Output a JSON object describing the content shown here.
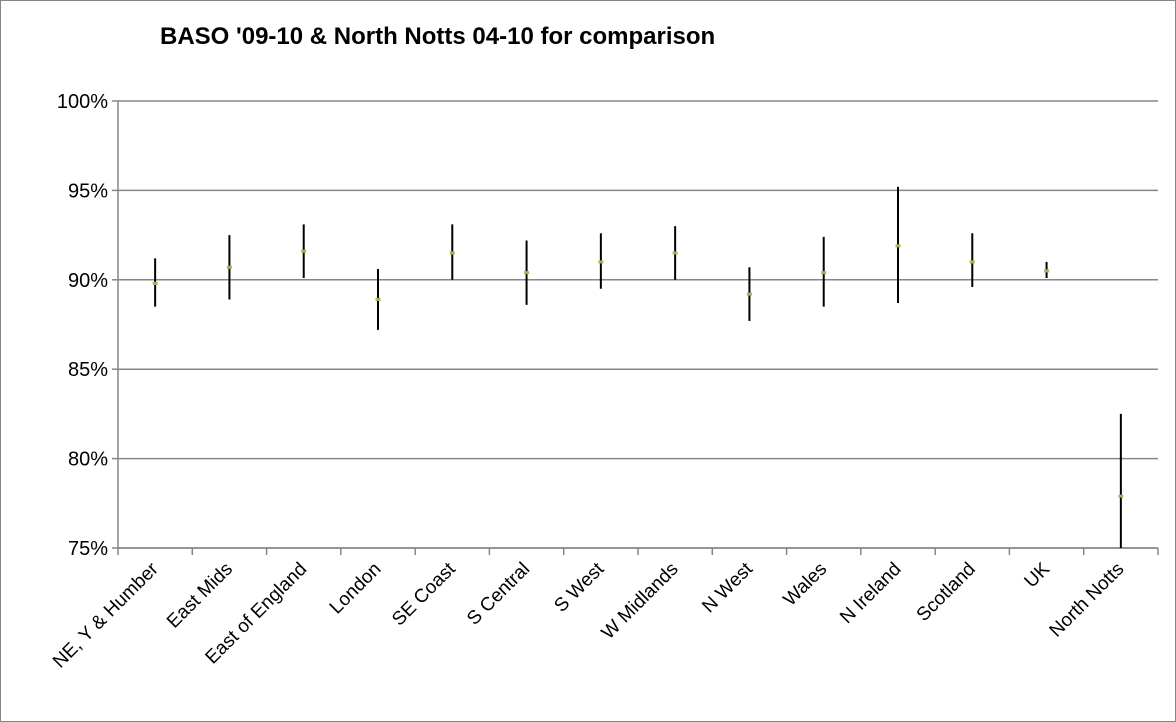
{
  "chart_data": {
    "type": "scatter",
    "title": "BASO '09-10 & North Notts  04-10 for comparison",
    "xlabel": "",
    "ylabel": "",
    "ylim": [
      0.75,
      1.0
    ],
    "y_ticks": [
      "75%",
      "80%",
      "85%",
      "90%",
      "95%",
      "100%"
    ],
    "y_tick_values": [
      0.75,
      0.8,
      0.85,
      0.9,
      0.95,
      1.0
    ],
    "grid": true,
    "legend": "none",
    "categories": [
      "NE, Y & Humber",
      "East Mids",
      "East of England",
      "London",
      "SE Coast",
      "S Central",
      "S West",
      "W Midlands",
      "N West",
      "Wales",
      "N Ireland",
      "Scotland",
      "UK",
      "North Notts"
    ],
    "values": [
      0.898,
      0.907,
      0.916,
      0.889,
      0.915,
      0.904,
      0.91,
      0.915,
      0.892,
      0.904,
      0.919,
      0.91,
      0.905,
      0.779
    ],
    "upper": [
      0.912,
      0.925,
      0.931,
      0.906,
      0.931,
      0.922,
      0.926,
      0.93,
      0.907,
      0.924,
      0.952,
      0.926,
      0.91,
      0.825
    ],
    "lower": [
      0.885,
      0.889,
      0.901,
      0.872,
      0.9,
      0.886,
      0.895,
      0.9,
      0.877,
      0.885,
      0.887,
      0.896,
      0.901,
      0.75
    ],
    "colors": {
      "point": "#9bbb59",
      "error_bar": "#000000",
      "grid": "#868686",
      "axis": "#868686"
    }
  }
}
